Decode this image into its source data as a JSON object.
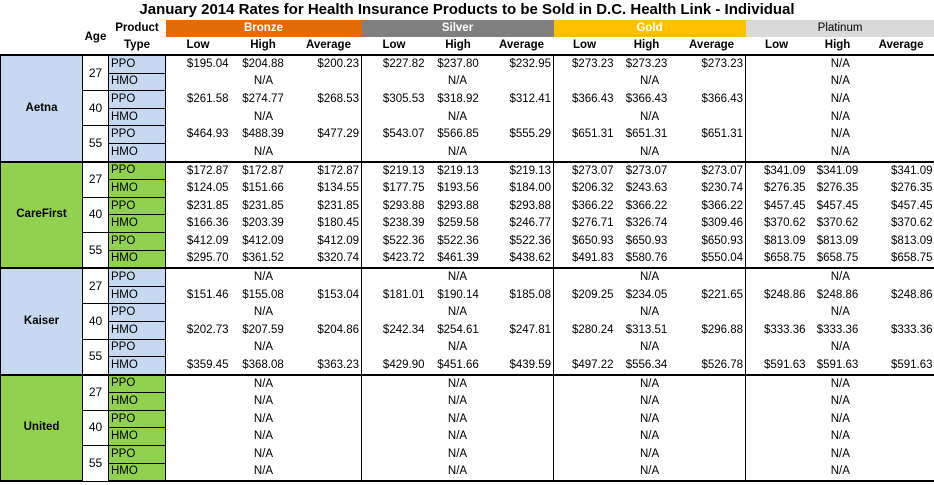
{
  "title": "January 2014 Rates for Health Insurance Products to be Sold in D.C. Health Link - Individual",
  "headers": {
    "age": "Age",
    "product_line1": "Product",
    "product_line2": "Type",
    "tiers": [
      "Bronze",
      "Silver",
      "Gold",
      "Platinum"
    ],
    "sub": [
      "Low",
      "High",
      "Average"
    ]
  },
  "colors": {
    "bronze": "#e36c09",
    "silver": "#808080",
    "gold": "#ffc000",
    "platinum": "#d9d9d9",
    "blue_carrier": "#c6d9f1",
    "green_carrier": "#92d050"
  },
  "carriers": [
    {
      "name": "Aetna",
      "ages": [
        {
          "age": "27",
          "rows": [
            {
              "type": "PPO",
              "bronze": [
                "$195.04",
                "$204.88",
                "$200.23"
              ],
              "silver": [
                "$227.82",
                "$237.80",
                "$232.95"
              ],
              "gold": [
                "$273.23",
                "$273.23",
                "$273.23"
              ],
              "platinum": "N/A"
            },
            {
              "type": "HMO",
              "bronze": "N/A",
              "silver": "N/A",
              "gold": "N/A",
              "platinum": "N/A"
            }
          ]
        },
        {
          "age": "40",
          "rows": [
            {
              "type": "PPO",
              "bronze": [
                "$261.58",
                "$274.77",
                "$268.53"
              ],
              "silver": [
                "$305.53",
                "$318.92",
                "$312.41"
              ],
              "gold": [
                "$366.43",
                "$366.43",
                "$366.43"
              ],
              "platinum": "N/A"
            },
            {
              "type": "HMO",
              "bronze": "N/A",
              "silver": "N/A",
              "gold": "N/A",
              "platinum": "N/A"
            }
          ]
        },
        {
          "age": "55",
          "rows": [
            {
              "type": "PPO",
              "bronze": [
                "$464.93",
                "$488.39",
                "$477.29"
              ],
              "silver": [
                "$543.07",
                "$566.85",
                "$555.29"
              ],
              "gold": [
                "$651.31",
                "$651.31",
                "$651.31"
              ],
              "platinum": "N/A"
            },
            {
              "type": "HMO",
              "bronze": "N/A",
              "silver": "N/A",
              "gold": "N/A",
              "platinum": "N/A"
            }
          ]
        }
      ]
    },
    {
      "name": "CareFirst",
      "ages": [
        {
          "age": "27",
          "rows": [
            {
              "type": "PPO",
              "bronze": [
                "$172.87",
                "$172.87",
                "$172.87"
              ],
              "silver": [
                "$219.13",
                "$219.13",
                "$219.13"
              ],
              "gold": [
                "$273.07",
                "$273.07",
                "$273.07"
              ],
              "platinum": [
                "$341.09",
                "$341.09",
                "$341.09"
              ]
            },
            {
              "type": "HMO",
              "bronze": [
                "$124.05",
                "$151.66",
                "$134.55"
              ],
              "silver": [
                "$177.75",
                "$193.56",
                "$184.00"
              ],
              "gold": [
                "$206.32",
                "$243.63",
                "$230.74"
              ],
              "platinum": [
                "$276.35",
                "$276.35",
                "$276.35"
              ]
            }
          ]
        },
        {
          "age": "40",
          "rows": [
            {
              "type": "PPO",
              "bronze": [
                "$231.85",
                "$231.85",
                "$231.85"
              ],
              "silver": [
                "$293.88",
                "$293.88",
                "$293.88"
              ],
              "gold": [
                "$366.22",
                "$366.22",
                "$366.22"
              ],
              "platinum": [
                "$457.45",
                "$457.45",
                "$457.45"
              ]
            },
            {
              "type": "HMO",
              "bronze": [
                "$166.36",
                "$203.39",
                "$180.45"
              ],
              "silver": [
                "$238.39",
                "$259.58",
                "$246.77"
              ],
              "gold": [
                "$276.71",
                "$326.74",
                "$309.46"
              ],
              "platinum": [
                "$370.62",
                "$370.62",
                "$370.62"
              ]
            }
          ]
        },
        {
          "age": "55",
          "rows": [
            {
              "type": "PPO",
              "bronze": [
                "$412.09",
                "$412.09",
                "$412.09"
              ],
              "silver": [
                "$522.36",
                "$522.36",
                "$522.36"
              ],
              "gold": [
                "$650.93",
                "$650.93",
                "$650.93"
              ],
              "platinum": [
                "$813.09",
                "$813.09",
                "$813.09"
              ]
            },
            {
              "type": "HMO",
              "bronze": [
                "$295.70",
                "$361.52",
                "$320.74"
              ],
              "silver": [
                "$423.72",
                "$461.39",
                "$438.62"
              ],
              "gold": [
                "$491.83",
                "$580.76",
                "$550.04"
              ],
              "platinum": [
                "$658.75",
                "$658.75",
                "$658.75"
              ]
            }
          ]
        }
      ]
    },
    {
      "name": "Kaiser",
      "ages": [
        {
          "age": "27",
          "rows": [
            {
              "type": "PPO",
              "bronze": "N/A",
              "silver": "N/A",
              "gold": "N/A",
              "platinum": "N/A"
            },
            {
              "type": "HMO",
              "bronze": [
                "$151.46",
                "$155.08",
                "$153.04"
              ],
              "silver": [
                "$181.01",
                "$190.14",
                "$185.08"
              ],
              "gold": [
                "$209.25",
                "$234.05",
                "$221.65"
              ],
              "platinum": [
                "$248.86",
                "$248.86",
                "$248.86"
              ]
            }
          ]
        },
        {
          "age": "40",
          "rows": [
            {
              "type": "PPO",
              "bronze": "N/A",
              "silver": "N/A",
              "gold": "N/A",
              "platinum": "N/A"
            },
            {
              "type": "HMO",
              "bronze": [
                "$202.73",
                "$207.59",
                "$204.86"
              ],
              "silver": [
                "$242.34",
                "$254.61",
                "$247.81"
              ],
              "gold": [
                "$280.24",
                "$313.51",
                "$296.88"
              ],
              "platinum": [
                "$333.36",
                "$333.36",
                "$333.36"
              ]
            }
          ]
        },
        {
          "age": "55",
          "rows": [
            {
              "type": "PPO",
              "bronze": "N/A",
              "silver": "N/A",
              "gold": "N/A",
              "platinum": "N/A"
            },
            {
              "type": "HMO",
              "bronze": [
                "$359.45",
                "$368.08",
                "$363.23"
              ],
              "silver": [
                "$429.90",
                "$451.66",
                "$439.59"
              ],
              "gold": [
                "$497.22",
                "$556.34",
                "$526.78"
              ],
              "platinum": [
                "$591.63",
                "$591.63",
                "$591.63"
              ]
            }
          ]
        }
      ]
    },
    {
      "name": "United",
      "ages": [
        {
          "age": "27",
          "rows": [
            {
              "type": "PPO",
              "bronze": "N/A",
              "silver": "N/A",
              "gold": "N/A",
              "platinum": "N/A"
            },
            {
              "type": "HMO",
              "bronze": "N/A",
              "silver": "N/A",
              "gold": "N/A",
              "platinum": "N/A"
            }
          ]
        },
        {
          "age": "40",
          "rows": [
            {
              "type": "PPO",
              "bronze": "N/A",
              "silver": "N/A",
              "gold": "N/A",
              "platinum": "N/A"
            },
            {
              "type": "HMO",
              "bronze": "N/A",
              "silver": "N/A",
              "gold": "N/A",
              "platinum": "N/A"
            }
          ]
        },
        {
          "age": "55",
          "rows": [
            {
              "type": "PPO",
              "bronze": "N/A",
              "silver": "N/A",
              "gold": "N/A",
              "platinum": "N/A"
            },
            {
              "type": "HMO",
              "bronze": "N/A",
              "silver": "N/A",
              "gold": "N/A",
              "platinum": "N/A"
            }
          ]
        }
      ]
    }
  ]
}
